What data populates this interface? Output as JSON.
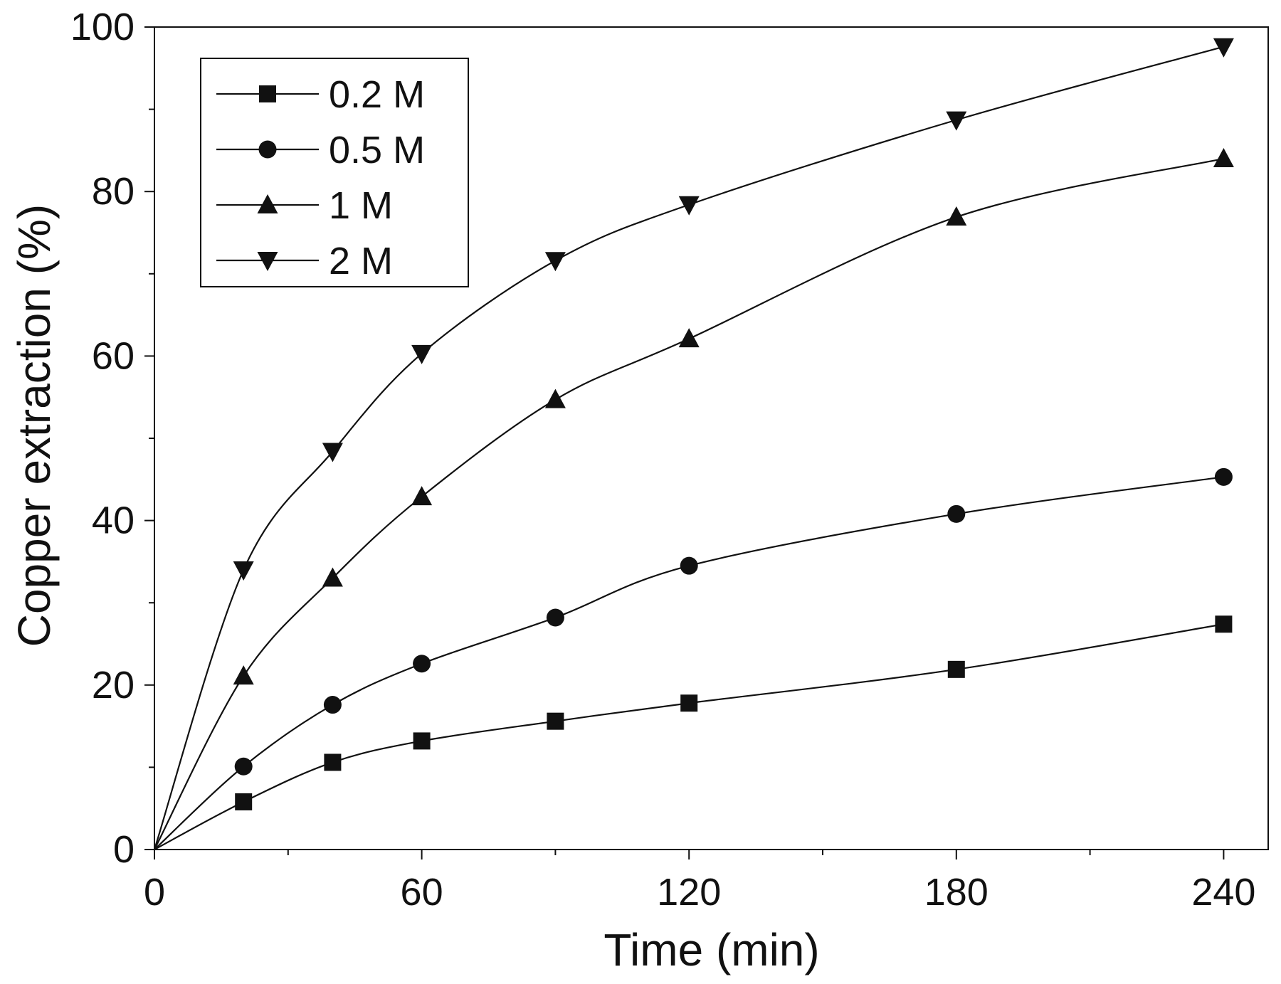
{
  "chart_data": {
    "type": "line",
    "title": "",
    "xlabel": "Time (min)",
    "ylabel": "Copper extraction (%)",
    "xlim": [
      0,
      250
    ],
    "ylim": [
      0,
      100
    ],
    "x_ticks": [
      0,
      60,
      120,
      180,
      240
    ],
    "x_tick_labels": [
      "0",
      "60",
      "120",
      "180",
      "240"
    ],
    "x_minor_ticks": [
      30,
      90,
      150,
      210
    ],
    "y_ticks": [
      0,
      20,
      40,
      60,
      80,
      100
    ],
    "y_tick_labels": [
      "0",
      "20",
      "40",
      "60",
      "80",
      "100"
    ],
    "y_minor_ticks": [
      10,
      30,
      50,
      70,
      90
    ],
    "grid": false,
    "legend_position": "top-left",
    "series": [
      {
        "name": "0.2 M",
        "marker": "square",
        "points": [
          {
            "x": 0,
            "y": 0
          },
          {
            "x": 20,
            "y": 5.8
          },
          {
            "x": 40,
            "y": 10.6
          },
          {
            "x": 60,
            "y": 13.2
          },
          {
            "x": 90,
            "y": 15.6
          },
          {
            "x": 120,
            "y": 17.8
          },
          {
            "x": 180,
            "y": 21.9
          },
          {
            "x": 240,
            "y": 27.4
          }
        ]
      },
      {
        "name": "0.5 M",
        "marker": "circle",
        "points": [
          {
            "x": 0,
            "y": 0
          },
          {
            "x": 20,
            "y": 10.1
          },
          {
            "x": 40,
            "y": 17.6
          },
          {
            "x": 60,
            "y": 22.6
          },
          {
            "x": 90,
            "y": 28.2
          },
          {
            "x": 120,
            "y": 34.5
          },
          {
            "x": 180,
            "y": 40.8
          },
          {
            "x": 240,
            "y": 45.3
          }
        ]
      },
      {
        "name": "1 M",
        "marker": "triangle-up",
        "points": [
          {
            "x": 0,
            "y": 0
          },
          {
            "x": 20,
            "y": 21.1
          },
          {
            "x": 40,
            "y": 33.0
          },
          {
            "x": 60,
            "y": 42.9
          },
          {
            "x": 90,
            "y": 54.7
          },
          {
            "x": 120,
            "y": 62.1
          },
          {
            "x": 180,
            "y": 76.9
          },
          {
            "x": 240,
            "y": 84.0
          }
        ]
      },
      {
        "name": "2 M",
        "marker": "triangle-down",
        "points": [
          {
            "x": 0,
            "y": 0
          },
          {
            "x": 20,
            "y": 34.0
          },
          {
            "x": 40,
            "y": 48.4
          },
          {
            "x": 60,
            "y": 60.3
          },
          {
            "x": 90,
            "y": 71.6
          },
          {
            "x": 120,
            "y": 78.4
          },
          {
            "x": 180,
            "y": 88.7
          },
          {
            "x": 240,
            "y": 97.6
          }
        ]
      }
    ]
  }
}
